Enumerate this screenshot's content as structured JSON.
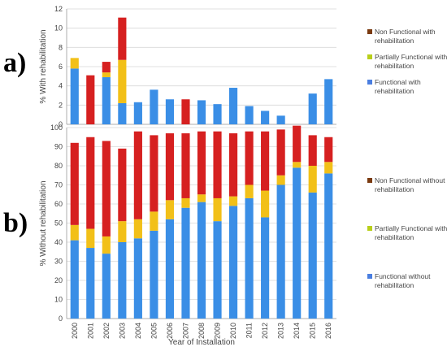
{
  "chart_data": [
    {
      "panel": "a)",
      "type": "bar",
      "stacked": true,
      "ylabel": "% With rehabilitation",
      "ylim": [
        0,
        12
      ],
      "yticks": [
        0,
        2,
        4,
        6,
        8,
        10,
        12
      ],
      "categories": [
        "2000",
        "2001",
        "2002",
        "2003",
        "2004",
        "2005",
        "2006",
        "2007",
        "2008",
        "2009",
        "2010",
        "2011",
        "2012",
        "2013",
        "2014",
        "2015",
        "2016"
      ],
      "series": [
        {
          "name": "Functional with rehabilitation",
          "color": "#3a8ee6",
          "values": [
            5.8,
            0,
            4.9,
            2.2,
            2.3,
            3.6,
            2.6,
            0,
            2.5,
            2.1,
            3.8,
            1.9,
            1.4,
            0.9,
            0,
            3.2,
            4.7
          ]
        },
        {
          "name": "Partially Functional with rehabilitation",
          "color": "#f2c018",
          "values": [
            1.1,
            0,
            0.5,
            4.5,
            0,
            0,
            0,
            0,
            0,
            0,
            0,
            0,
            0,
            0,
            0,
            0,
            0
          ]
        },
        {
          "name": "Non Functional with rehabilitation",
          "color": "#d62020",
          "values": [
            0,
            5.1,
            1.1,
            4.4,
            0,
            0,
            0,
            2.6,
            0,
            0,
            0,
            0,
            0,
            0,
            0,
            0,
            0
          ]
        }
      ],
      "legend": [
        {
          "label": "Non Functional with rehabilitation",
          "color": "#7a3a10"
        },
        {
          "label": "Partially Functional with rehabilitation",
          "color": "#b8cf1a"
        },
        {
          "label": "Functional with rehabilitation",
          "color": "#4a7ee0"
        }
      ]
    },
    {
      "panel": "b)",
      "type": "bar",
      "stacked": true,
      "xlabel": "Year of Installation",
      "ylabel": "% Without rehabilitation",
      "ylim": [
        0,
        100
      ],
      "yticks": [
        0,
        10,
        20,
        30,
        40,
        50,
        60,
        70,
        80,
        90,
        100
      ],
      "categories": [
        "2000",
        "2001",
        "2002",
        "2003",
        "2004",
        "2005",
        "2006",
        "2007",
        "2008",
        "2009",
        "2010",
        "2011",
        "2012",
        "2013",
        "2014",
        "2015",
        "2016"
      ],
      "series": [
        {
          "name": "Functional without rehabilitation",
          "color": "#3a8ee6",
          "values": [
            41,
            37,
            34,
            40,
            42,
            46,
            52,
            58,
            61,
            51,
            59,
            63,
            53,
            70,
            79,
            66,
            76
          ]
        },
        {
          "name": "Partially Functional without rehabilitation",
          "color": "#f2c018",
          "values": [
            8,
            10,
            9,
            11,
            10,
            10,
            10,
            5,
            4,
            12,
            5,
            7,
            14,
            5,
            3,
            14,
            6
          ]
        },
        {
          "name": "Non Functional without rehabilitation",
          "color": "#d62020",
          "values": [
            43,
            48,
            50,
            38,
            46,
            40,
            35,
            34,
            33,
            35,
            33,
            28,
            31,
            24,
            19,
            16,
            13
          ]
        }
      ],
      "legend": [
        {
          "label": "Non Functional without rehabilitation",
          "color": "#7a3a10"
        },
        {
          "label": "Partially Functional without rehabilitation",
          "color": "#b8cf1a"
        },
        {
          "label": "Functional without rehabilitation",
          "color": "#4a7ee0"
        }
      ]
    }
  ]
}
